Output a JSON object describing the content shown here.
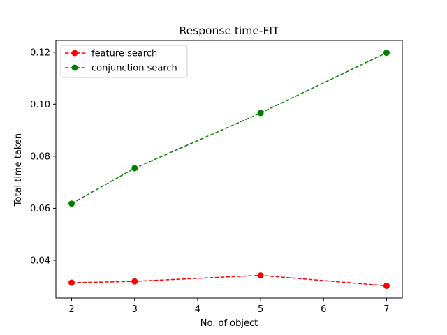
{
  "chart_data": {
    "type": "line",
    "title": "Response time-FIT",
    "xlabel": "No. of object",
    "ylabel": "Total time taken",
    "x": [
      2,
      3,
      5,
      7
    ],
    "xlim": [
      1.75,
      7.25
    ],
    "ylim": [
      0.0255,
      0.1245
    ],
    "xticks": [
      2,
      3,
      4,
      5,
      6,
      7
    ],
    "yticks": [
      0.04,
      0.06,
      0.08,
      0.1,
      0.12
    ],
    "ytick_labels": [
      "0.04",
      "0.06",
      "0.08",
      "0.10",
      "0.12"
    ],
    "grid": false,
    "legend_position": "top-left",
    "series": [
      {
        "name": "feature search",
        "color": "#ff0000",
        "line_style": "dashed",
        "marker": "circle",
        "values": [
          0.0314,
          0.0319,
          0.0342,
          0.0302
        ]
      },
      {
        "name": "conjunction search",
        "color": "#008000",
        "line_style": "dashed",
        "marker": "circle",
        "values": [
          0.0618,
          0.0754,
          0.0966,
          0.1198
        ]
      }
    ]
  }
}
